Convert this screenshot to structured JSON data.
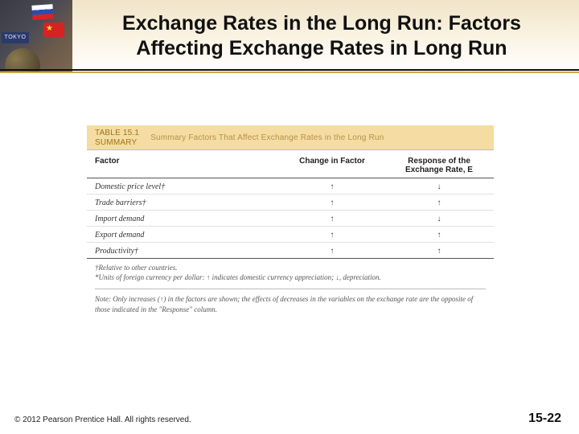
{
  "header": {
    "title_line1": "Exchange Rates in the Long Run: Factors",
    "title_line2": "Affecting Exchange Rates in Long Run"
  },
  "table": {
    "label_line1": "TABLE 15.1",
    "label_line2": "SUMMARY",
    "caption": "Summary Factors That Affect Exchange Rates in the Long Run",
    "head_bg": "#f4dca2",
    "columns": {
      "c1": "Factor",
      "c2": "Change in Factor",
      "c3_line1": "Response of the",
      "c3_line2": "Exchange Rate, E"
    },
    "rows": [
      {
        "factor": "Domestic price level†",
        "change": "↑",
        "response": "↓"
      },
      {
        "factor": "Trade barriers†",
        "change": "↑",
        "response": "↑"
      },
      {
        "factor": "Import demand",
        "change": "↑",
        "response": "↓"
      },
      {
        "factor": "Export demand",
        "change": "↑",
        "response": "↑"
      },
      {
        "factor": "Productivity†",
        "change": "↑",
        "response": "↑"
      }
    ],
    "footnote1": "†Relative to other countries.",
    "footnote2": "*Units of foreign currency per dollar: ↑ indicates domestic currency appreciation; ↓, depreciation.",
    "note": "Note: Only increases (↑) in the factors are shown; the effects of decreases in the variables on the exchange rate are the opposite of those indicated in the \"Response\" column."
  },
  "footer": {
    "copyright": "© 2012 Pearson Prentice Hall. All rights reserved.",
    "page": "15-22"
  }
}
